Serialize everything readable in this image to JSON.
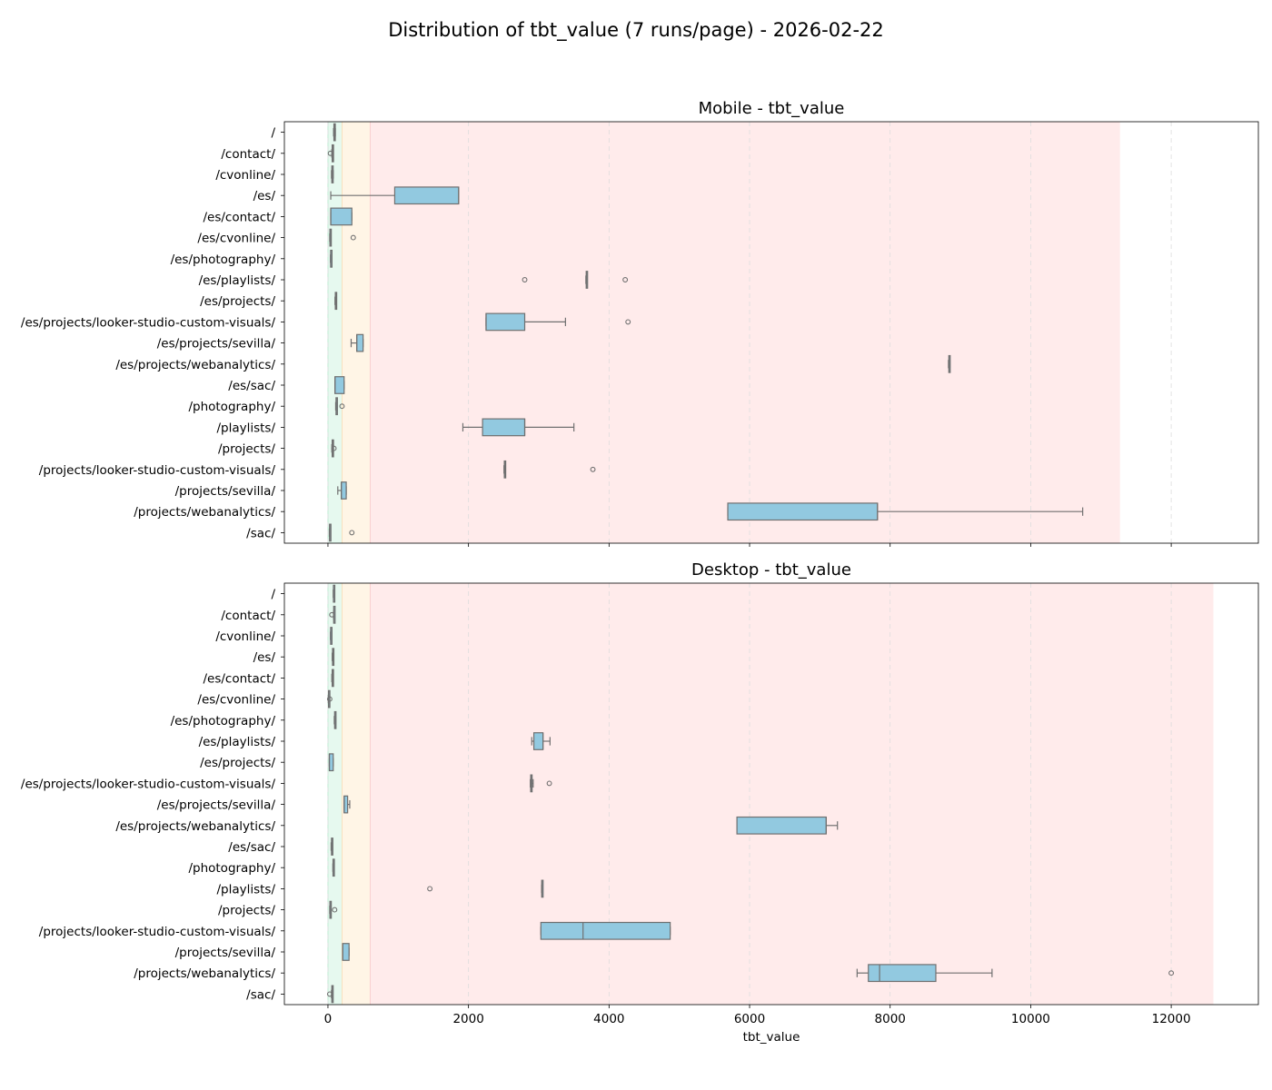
{
  "figure": {
    "title": "Distribution of tbt_value (7 runs/page) - 2026-02-22"
  },
  "colors": {
    "box_fill": "#92c9e0",
    "box_edge": "#707070",
    "zone_good": "#e6f9ef",
    "zone_needs_improvement": "#fff5e6",
    "zone_poor": "#ffebeb",
    "grid": "#dddddd"
  },
  "chart_data": [
    {
      "type": "box",
      "title": "Mobile - tbt_value",
      "xlabel": "",
      "xlim": [
        -620,
        13240
      ],
      "xticks": [
        0,
        2000,
        4000,
        6000,
        8000,
        10000,
        12000
      ],
      "show_xtick_labels": false,
      "grid": "x dashed",
      "zones": [
        {
          "name": "good",
          "from": 0,
          "to": 200
        },
        {
          "name": "needs_improvement",
          "from": 200,
          "to": 600
        },
        {
          "name": "poor",
          "from": 600,
          "to": 11270
        }
      ],
      "categories": [
        "/",
        "/contact/",
        "/cvonline/",
        "/es/",
        "/es/contact/",
        "/es/cvonline/",
        "/es/photography/",
        "/es/playlists/",
        "/es/projects/",
        "/es/projects/looker-studio-custom-visuals/",
        "/es/projects/sevilla/",
        "/es/projects/webanalytics/",
        "/es/sac/",
        "/photography/",
        "/playlists/",
        "/projects/",
        "/projects/looker-studio-custom-visuals/",
        "/projects/sevilla/",
        "/projects/webanalytics/",
        "/sac/"
      ],
      "boxes": [
        {
          "whislo": 80,
          "q1": 85,
          "med": 92,
          "q3": 100,
          "whishi": 105,
          "fliers": []
        },
        {
          "whislo": 55,
          "q1": 60,
          "med": 65,
          "q3": 70,
          "whishi": 75,
          "fliers": [
            35
          ]
        },
        {
          "whislo": 50,
          "q1": 55,
          "med": 60,
          "q3": 68,
          "whishi": 75,
          "fliers": []
        },
        {
          "whislo": 40,
          "q1": 950,
          "med": 1860,
          "q3": 1860,
          "whishi": 1860,
          "fliers": []
        },
        {
          "whislo": 40,
          "q1": 40,
          "med": 40,
          "q3": 340,
          "whishi": 340,
          "fliers": []
        },
        {
          "whislo": 25,
          "q1": 28,
          "med": 30,
          "q3": 33,
          "whishi": 35,
          "fliers": [
            360
          ]
        },
        {
          "whislo": 35,
          "q1": 38,
          "med": 40,
          "q3": 43,
          "whishi": 45,
          "fliers": []
        },
        {
          "whislo": 3670,
          "q1": 3675,
          "med": 3680,
          "q3": 3685,
          "whishi": 3690,
          "fliers": [
            2800,
            4230
          ]
        },
        {
          "whislo": 100,
          "q1": 105,
          "med": 110,
          "q3": 115,
          "whishi": 120,
          "fliers": []
        },
        {
          "whislo": 2250,
          "q1": 2250,
          "med": 2250,
          "q3": 2800,
          "whishi": 3380,
          "fliers": [
            4270
          ]
        },
        {
          "whislo": 330,
          "q1": 410,
          "med": 410,
          "q3": 500,
          "whishi": 500,
          "fliers": []
        },
        {
          "whislo": 8830,
          "q1": 8835,
          "med": 8840,
          "q3": 8845,
          "whishi": 8850,
          "fliers": []
        },
        {
          "whislo": 100,
          "q1": 100,
          "med": 100,
          "q3": 230,
          "whishi": 230,
          "fliers": []
        },
        {
          "whislo": 110,
          "q1": 115,
          "med": 120,
          "q3": 125,
          "whishi": 130,
          "fliers": [
            200
          ]
        },
        {
          "whislo": 1920,
          "q1": 2200,
          "med": 2800,
          "q3": 2800,
          "whishi": 3500,
          "fliers": []
        },
        {
          "whislo": 55,
          "q1": 60,
          "med": 65,
          "q3": 70,
          "whishi": 75,
          "fliers": [
            85
          ]
        },
        {
          "whislo": 2505,
          "q1": 2510,
          "med": 2515,
          "q3": 2520,
          "whishi": 2525,
          "fliers": [
            3770
          ]
        },
        {
          "whislo": 140,
          "q1": 190,
          "med": 190,
          "q3": 260,
          "whishi": 260,
          "fliers": []
        },
        {
          "whislo": 5690,
          "q1": 5690,
          "med": 7820,
          "q3": 7820,
          "whishi": 10740,
          "fliers": []
        },
        {
          "whislo": 20,
          "q1": 23,
          "med": 25,
          "q3": 28,
          "whishi": 30,
          "fliers": [
            340
          ]
        }
      ]
    },
    {
      "type": "box",
      "title": "Desktop - tbt_value",
      "xlabel": "tbt_value",
      "xlim": [
        -620,
        13240
      ],
      "xticks": [
        0,
        2000,
        4000,
        6000,
        8000,
        10000,
        12000
      ],
      "show_xtick_labels": true,
      "grid": "x dashed",
      "zones": [
        {
          "name": "good",
          "from": 0,
          "to": 200
        },
        {
          "name": "needs_improvement",
          "from": 200,
          "to": 600
        },
        {
          "name": "poor",
          "from": 600,
          "to": 12600
        }
      ],
      "categories": [
        "/",
        "/contact/",
        "/cvonline/",
        "/es/",
        "/es/contact/",
        "/es/cvonline/",
        "/es/photography/",
        "/es/playlists/",
        "/es/projects/",
        "/es/projects/looker-studio-custom-visuals/",
        "/es/projects/sevilla/",
        "/es/projects/webanalytics/",
        "/es/sac/",
        "/photography/",
        "/playlists/",
        "/projects/",
        "/projects/looker-studio-custom-visuals/",
        "/projects/sevilla/",
        "/projects/webanalytics/",
        "/sac/"
      ],
      "boxes": [
        {
          "whislo": 75,
          "q1": 78,
          "med": 80,
          "q3": 82,
          "whishi": 85,
          "fliers": []
        },
        {
          "whislo": 80,
          "q1": 82,
          "med": 85,
          "q3": 88,
          "whishi": 90,
          "fliers": [
            55
          ]
        },
        {
          "whislo": 35,
          "q1": 38,
          "med": 40,
          "q3": 43,
          "whishi": 45,
          "fliers": []
        },
        {
          "whislo": 60,
          "q1": 65,
          "med": 70,
          "q3": 75,
          "whishi": 80,
          "fliers": []
        },
        {
          "whislo": 55,
          "q1": 60,
          "med": 65,
          "q3": 70,
          "whishi": 75,
          "fliers": []
        },
        {
          "whislo": 5,
          "q1": 8,
          "med": 10,
          "q3": 13,
          "whishi": 15,
          "fliers": [
            25
          ]
        },
        {
          "whislo": 90,
          "q1": 95,
          "med": 100,
          "q3": 105,
          "whishi": 110,
          "fliers": []
        },
        {
          "whislo": 2900,
          "q1": 2930,
          "med": 3060,
          "q3": 3060,
          "whishi": 3160,
          "fliers": []
        },
        {
          "whislo": 20,
          "q1": 20,
          "med": 20,
          "q3": 75,
          "whishi": 75,
          "fliers": []
        },
        {
          "whislo": 2880,
          "q1": 2885,
          "med": 2890,
          "q3": 2905,
          "whishi": 2920,
          "fliers": [
            3150
          ]
        },
        {
          "whislo": 230,
          "q1": 230,
          "med": 230,
          "q3": 280,
          "whishi": 310,
          "fliers": []
        },
        {
          "whislo": 5820,
          "q1": 5820,
          "med": 7090,
          "q3": 7090,
          "whishi": 7250,
          "fliers": []
        },
        {
          "whislo": 45,
          "q1": 50,
          "med": 55,
          "q3": 60,
          "whishi": 65,
          "fliers": []
        },
        {
          "whislo": 70,
          "q1": 72,
          "med": 75,
          "q3": 78,
          "whishi": 80,
          "fliers": []
        },
        {
          "whislo": 3040,
          "q1": 3042,
          "med": 3045,
          "q3": 3048,
          "whishi": 3050,
          "fliers": [
            1450
          ]
        },
        {
          "whislo": 25,
          "q1": 28,
          "med": 30,
          "q3": 33,
          "whishi": 35,
          "fliers": [
            95
          ]
        },
        {
          "whislo": 3030,
          "q1": 3030,
          "med": 3630,
          "q3": 4870,
          "whishi": 4870,
          "fliers": []
        },
        {
          "whislo": 210,
          "q1": 210,
          "med": 210,
          "q3": 300,
          "whishi": 300,
          "fliers": []
        },
        {
          "whislo": 7530,
          "q1": 7690,
          "med": 7850,
          "q3": 8650,
          "whishi": 9450,
          "fliers": [
            12000
          ]
        },
        {
          "whislo": 50,
          "q1": 55,
          "med": 60,
          "q3": 65,
          "whishi": 70,
          "fliers": [
            25
          ]
        }
      ]
    }
  ]
}
